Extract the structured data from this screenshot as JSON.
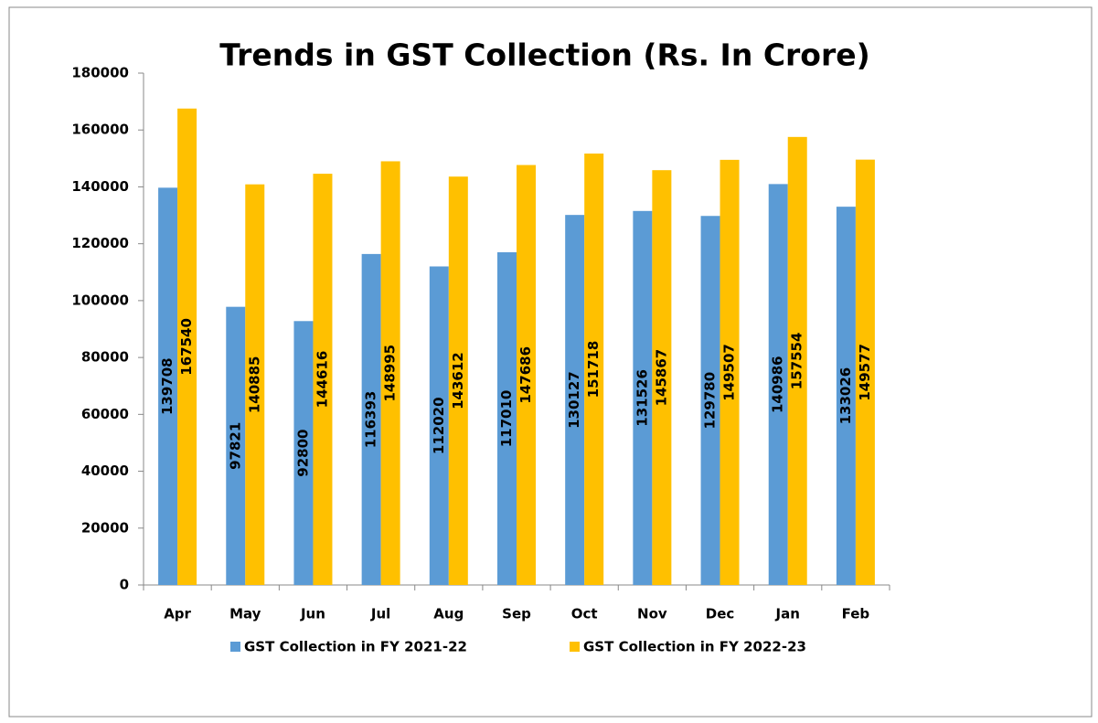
{
  "chart_data": {
    "type": "bar",
    "title": "Trends in GST Collection (Rs. In Crore)",
    "categories": [
      "Apr",
      "May",
      "Jun",
      "Jul",
      "Aug",
      "Sep",
      "Oct",
      "Nov",
      "Dec",
      "Jan",
      "Feb"
    ],
    "series": [
      {
        "name": "GST Collection in FY 2021-22",
        "color": "#5b9bd5",
        "values": [
          139708,
          97821,
          92800,
          116393,
          112020,
          117010,
          130127,
          131526,
          129780,
          140986,
          133026
        ]
      },
      {
        "name": "GST Collection in FY 2022-23",
        "color": "#ffc000",
        "values": [
          167540,
          140885,
          144616,
          148995,
          143612,
          147686,
          151718,
          145867,
          149507,
          157554,
          149577
        ]
      }
    ],
    "ylim": [
      0,
      180000
    ],
    "yticks": [
      0,
      20000,
      40000,
      60000,
      80000,
      100000,
      120000,
      140000,
      160000,
      180000
    ],
    "grid": false,
    "legend": "bottom"
  }
}
